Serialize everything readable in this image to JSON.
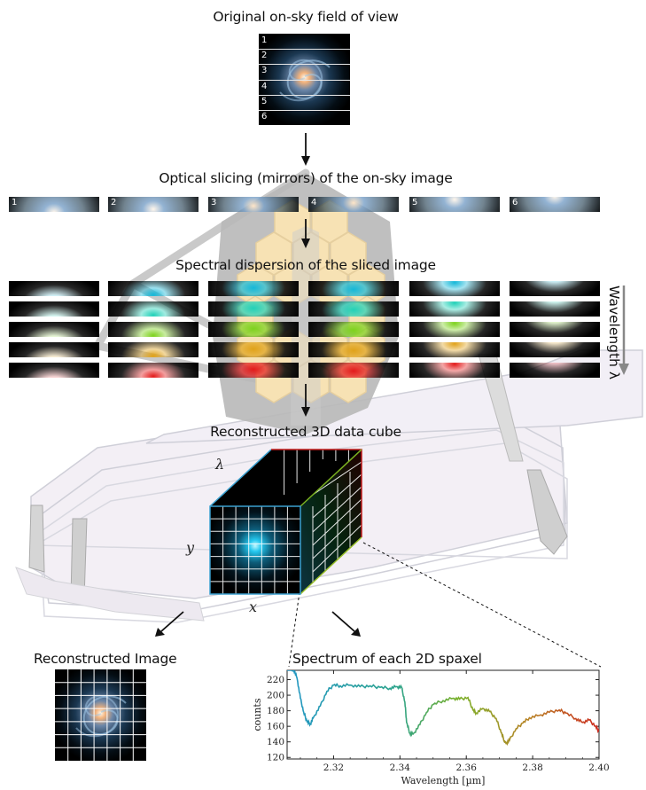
{
  "titles": {
    "original": "Original on-sky field of view",
    "slicing": "Optical slicing (mirrors) of the on-sky image",
    "dispersion": "Spectral dispersion of the sliced image",
    "cube": "Reconstructed 3D data cube",
    "reconstructed": "Reconstructed Image",
    "spectrum": "Spectrum of each 2D spaxel"
  },
  "wavelength_label": "Wavelength λ",
  "slice_numbers": [
    "1",
    "2",
    "3",
    "4",
    "5",
    "6"
  ],
  "cube_axes": {
    "lambda": "λ",
    "y": "y",
    "x": "x"
  },
  "dispersion_colors": [
    "#15b8d8",
    "#22d1b8",
    "#7ed21e",
    "#e0a21a",
    "#e31b1b"
  ],
  "chart_data": {
    "type": "line",
    "xlabel": "Wavelength [µm]",
    "ylabel": "counts",
    "xlim": [
      2.306,
      2.4
    ],
    "ylim": [
      118,
      232
    ],
    "xticks": [
      2.32,
      2.34,
      2.36,
      2.38,
      2.4
    ],
    "xtick_labels": [
      "2.32",
      "2.34",
      "2.36",
      "2.38",
      "2.40"
    ],
    "yticks": [
      120,
      140,
      160,
      180,
      200,
      220
    ],
    "ytick_labels": [
      "120",
      "140",
      "160",
      "180",
      "200",
      "220"
    ],
    "series": [
      {
        "x": [
          2.306,
          2.308,
          2.309,
          2.31,
          2.311,
          2.312,
          2.313,
          2.314,
          2.316,
          2.318,
          2.32,
          2.322,
          2.325,
          2.328,
          2.331,
          2.334,
          2.337,
          2.339,
          2.3405,
          2.3415,
          2.342,
          2.343,
          2.344,
          2.346,
          2.348,
          2.35,
          2.353,
          2.356,
          2.358,
          2.3605,
          2.362,
          2.363,
          2.365,
          2.367,
          2.369,
          2.3705,
          2.3715,
          2.372,
          2.373,
          2.375,
          2.377,
          2.379,
          2.382,
          2.385,
          2.388,
          2.39,
          2.393,
          2.395,
          2.397,
          2.399,
          2.4
        ],
        "y": [
          233,
          233,
          222,
          196,
          178,
          166,
          163,
          172,
          186,
          205,
          213,
          212,
          213,
          211,
          212,
          210,
          209,
          211,
          210,
          191,
          165,
          151,
          150,
          162,
          178,
          188,
          193,
          196,
          195,
          197,
          181,
          177,
          183,
          179,
          170,
          152,
          141,
          138,
          142,
          157,
          164,
          171,
          174,
          178,
          181,
          177,
          170,
          165,
          168,
          160,
          153
        ]
      }
    ]
  }
}
